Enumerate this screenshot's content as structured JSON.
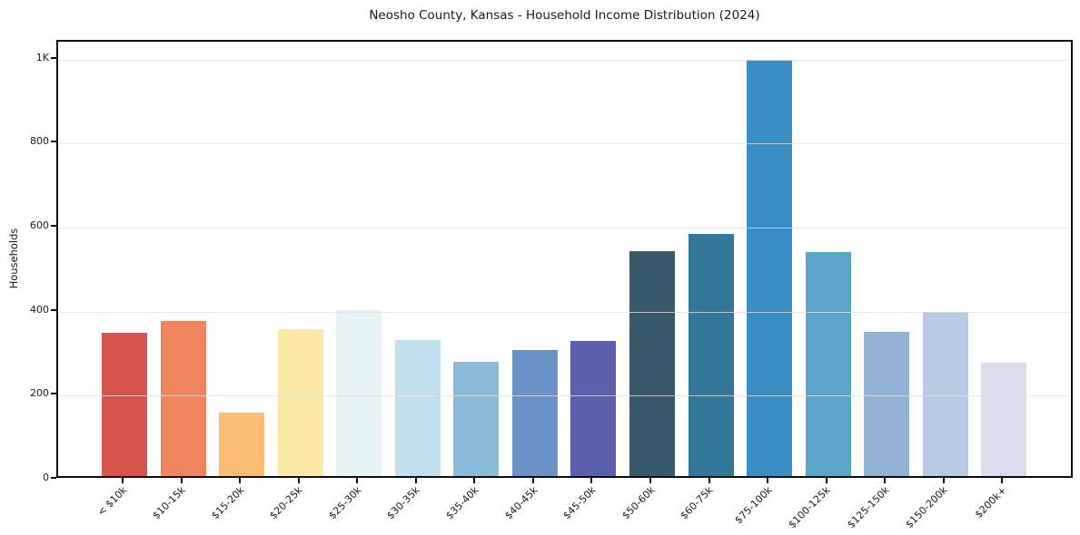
{
  "chart_data": {
    "type": "bar",
    "title": "Neosho County, Kansas - Household Income Distribution (2024)",
    "xlabel": "",
    "ylabel": "Households",
    "categories": [
      "< $10k",
      "$10-15k",
      "$15-20k",
      "$20-25k",
      "$25-30k",
      "$30-35k",
      "$35-40k",
      "$40-45k",
      "$45-50k",
      "$50-60k",
      "$60-75k",
      "$75-100k",
      "$100-125k",
      "$125-150k",
      "$150-200k",
      "$200k+"
    ],
    "values": [
      342,
      368,
      152,
      349,
      394,
      324,
      273,
      299,
      322,
      536,
      576,
      991,
      534,
      344,
      390,
      269
    ],
    "bar_colors": [
      "#d6564e",
      "#f0845e",
      "#fbbd74",
      "#fce9a4",
      "#e5f3f7",
      "#bfe0ec",
      "#8abbdb",
      "#6b92c7",
      "#5c5fab",
      "#36596b",
      "#32779a",
      "#3a8ec3",
      "#5ba4ca",
      "#90b3d6",
      "#bac9e2",
      "#d9dcea"
    ],
    "yticks": {
      "values": [
        0,
        200,
        400,
        600,
        800,
        1000
      ],
      "labels": [
        "0",
        "200",
        "400",
        "600",
        "800",
        "1K"
      ]
    },
    "ylim": [
      0,
      1042
    ],
    "grid": "horizontal",
    "legend": "none",
    "background_color": "#ffffff",
    "text_color": "#1a1a1a"
  }
}
